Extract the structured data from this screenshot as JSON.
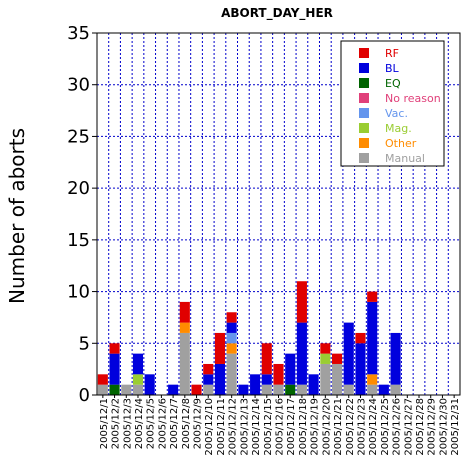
{
  "chart_data": {
    "type": "bar",
    "stacked": true,
    "title": "ABORT_DAY_HER",
    "xlabel": "",
    "ylabel": "Number of aborts",
    "ylim": [
      0,
      35
    ],
    "yticks": [
      0,
      5,
      10,
      15,
      20,
      25,
      30,
      35
    ],
    "grid": true,
    "legend_position": "top-right",
    "categories": [
      "2005/12/1",
      "2005/12/2",
      "2005/12/3",
      "2005/12/4",
      "2005/12/5",
      "2005/12/6",
      "2005/12/7",
      "2005/12/8",
      "2005/12/9",
      "2005/12/10",
      "2005/12/11",
      "2005/12/12",
      "2005/12/13",
      "2005/12/14",
      "2005/12/15",
      "2005/12/16",
      "2005/12/17",
      "2005/12/18",
      "2005/12/19",
      "2005/12/20",
      "2005/12/21",
      "2005/12/22",
      "2005/12/23",
      "2005/12/24",
      "2005/12/25",
      "2005/12/26",
      "2005/12/27",
      "2005/12/28",
      "2005/12/29",
      "2005/12/30",
      "2005/12/31"
    ],
    "series": [
      {
        "name": "Manual",
        "color": "#a0a0a0",
        "values": [
          1,
          0,
          1,
          1,
          0,
          0,
          0,
          6,
          0,
          1,
          0,
          4,
          0,
          0,
          1,
          1,
          0,
          1,
          0,
          3,
          3,
          1,
          0,
          1,
          0,
          1,
          0,
          0,
          0,
          0,
          0
        ]
      },
      {
        "name": "Other",
        "color": "#ff8c00",
        "values": [
          0,
          0,
          0,
          0,
          0,
          0,
          0,
          1,
          0,
          0,
          0,
          1,
          0,
          0,
          0,
          0,
          0,
          0,
          0,
          0,
          0,
          0,
          0,
          1,
          0,
          0,
          0,
          0,
          0,
          0,
          0
        ]
      },
      {
        "name": "Mag.",
        "color": "#9acd32",
        "values": [
          0,
          0,
          0,
          1,
          0,
          0,
          0,
          0,
          0,
          0,
          0,
          0,
          0,
          0,
          0,
          0,
          0,
          0,
          0,
          1,
          0,
          0,
          0,
          0,
          0,
          0,
          0,
          0,
          0,
          0,
          0
        ]
      },
      {
        "name": "Vac.",
        "color": "#6495ed",
        "values": [
          0,
          0,
          0,
          0,
          0,
          0,
          0,
          0,
          0,
          0,
          0,
          1,
          0,
          0,
          0,
          0,
          0,
          0,
          0,
          0,
          0,
          0,
          0,
          0,
          0,
          0,
          0,
          0,
          0,
          0,
          0
        ]
      },
      {
        "name": "No reason",
        "color": "#e0407a",
        "values": [
          0,
          0,
          0,
          0,
          0,
          0,
          0,
          0,
          0,
          0,
          0,
          0,
          0,
          0,
          0,
          0,
          0,
          0,
          0,
          0,
          0,
          0,
          0,
          0,
          0,
          0,
          0,
          0,
          0,
          0,
          0
        ]
      },
      {
        "name": "EQ",
        "color": "#006400",
        "values": [
          0,
          1,
          0,
          0,
          0,
          0,
          0,
          0,
          0,
          0,
          0,
          0,
          0,
          0,
          0,
          0,
          1,
          0,
          0,
          0,
          0,
          0,
          0,
          0,
          0,
          0,
          0,
          0,
          0,
          0,
          0
        ]
      },
      {
        "name": "BL",
        "color": "#0000dd",
        "values": [
          0,
          3,
          0,
          2,
          2,
          0,
          1,
          0,
          0,
          1,
          3,
          1,
          1,
          2,
          1,
          0,
          3,
          6,
          2,
          0,
          0,
          6,
          5,
          7,
          1,
          5,
          0,
          0,
          0,
          0,
          0
        ]
      },
      {
        "name": "RF",
        "color": "#e00000",
        "values": [
          1,
          1,
          0,
          0,
          0,
          0,
          0,
          2,
          1,
          1,
          3,
          1,
          0,
          0,
          3,
          2,
          0,
          4,
          0,
          1,
          1,
          0,
          1,
          1,
          0,
          0,
          0,
          0,
          0,
          0,
          0
        ]
      }
    ],
    "legend_order": [
      "RF",
      "BL",
      "EQ",
      "No reason",
      "Vac.",
      "Mag.",
      "Other",
      "Manual"
    ]
  }
}
